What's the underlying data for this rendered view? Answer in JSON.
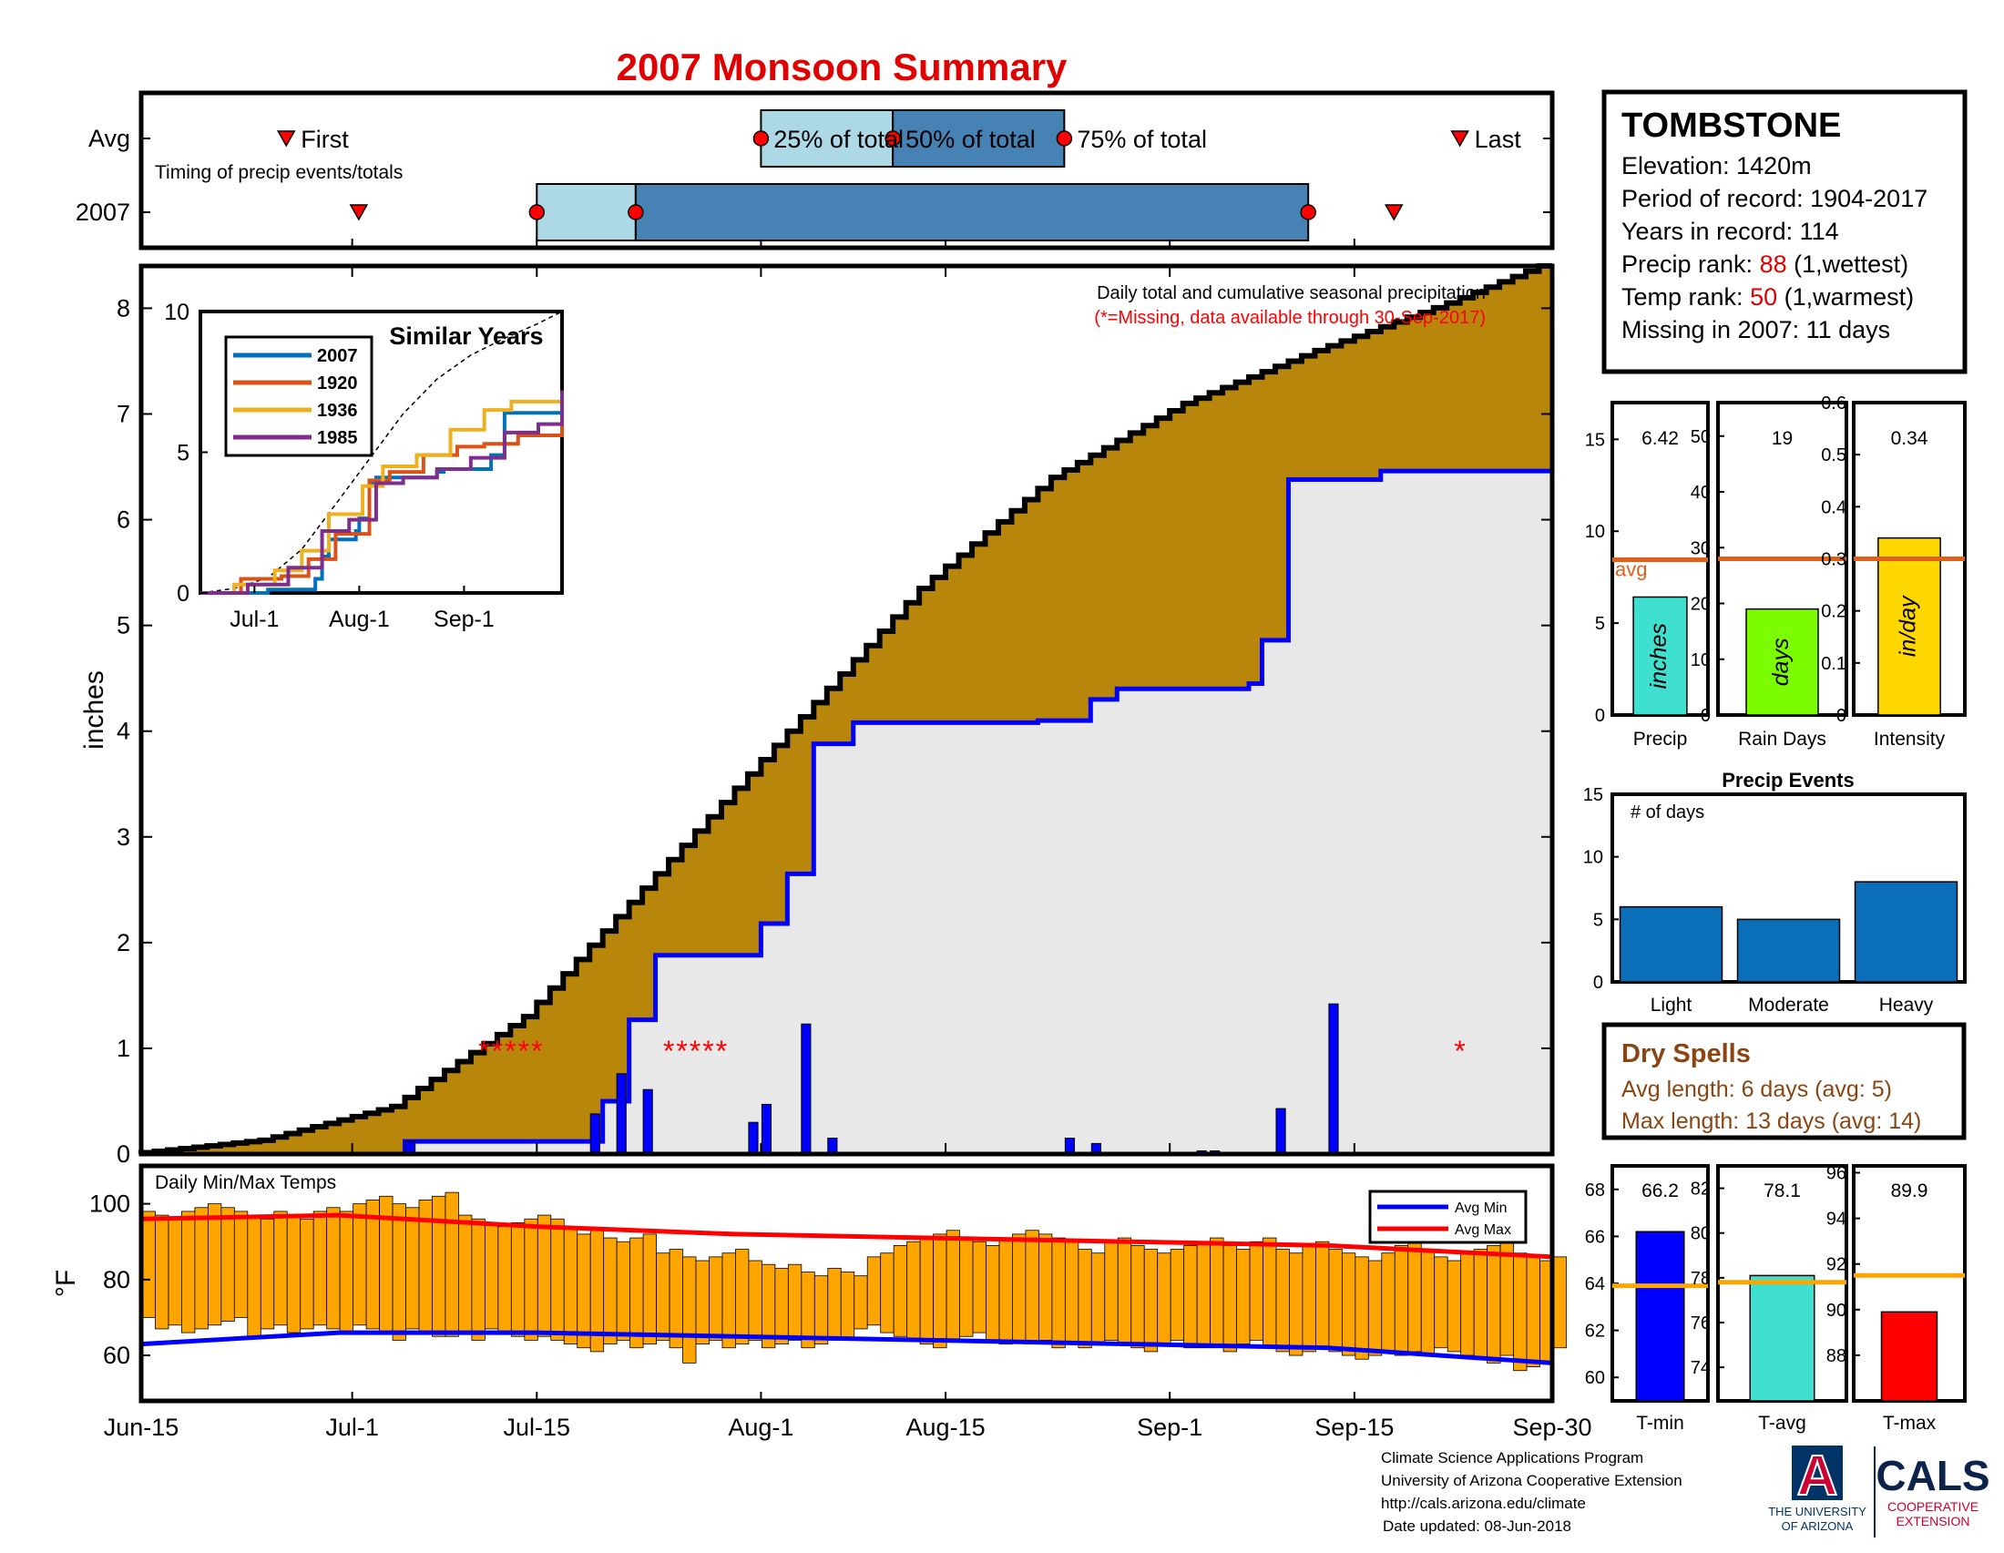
{
  "page": {
    "title": "2007 Monsoon Summary",
    "footer": {
      "lines": [
        "Climate Science Applications Program",
        "University of Arizona Cooperative Extension",
        "http://cals.arizona.edu/climate",
        "Date updated: 08-Jun-2018"
      ],
      "ua_logo_letter": "A",
      "ua_logo_lines": [
        "THE UNIVERSITY",
        "OF ARIZONA"
      ],
      "cals_logo": "CALS",
      "cals_sub": [
        "COOPERATIVE",
        "EXTENSION"
      ]
    }
  },
  "colors": {
    "title": "#e00000",
    "cumulative_avg_fill": "#b8860b",
    "cumulative_2007_fill": "#e8e8e8",
    "line_2007": "#0000ff",
    "missing": "#ff0000",
    "temp_bar": "#ffa500",
    "avg_max": "#ff0000",
    "avg_min": "#0000ff",
    "timing_light": "#add8e6",
    "timing_dark": "#4682b4",
    "avg_line": "#e0601a",
    "drought_text": "#8b4513"
  },
  "station": {
    "name": "TOMBSTONE",
    "lines": [
      {
        "label": "Elevation: ",
        "value": "1420m",
        "suffix": "",
        "highlight": false
      },
      {
        "label": "Period of record: ",
        "value": "1904-2017",
        "suffix": "",
        "highlight": false
      },
      {
        "label": "Years in record: ",
        "value": "114",
        "suffix": "",
        "highlight": false
      },
      {
        "label": "Precip rank: ",
        "value": "88",
        "suffix": " (1,wettest)",
        "highlight": true
      },
      {
        "label": "Temp rank: ",
        "value": "50",
        "suffix": " (1,warmest)",
        "highlight": true
      },
      {
        "label": "Missing in 2007: ",
        "value": "11 days",
        "suffix": "",
        "highlight": false
      }
    ]
  },
  "timing": {
    "rows": [
      "Avg",
      "2007"
    ],
    "caption": "Timing of precip events/totals",
    "avg": {
      "first": 11,
      "q25": 47,
      "q50": 57,
      "q75": 70,
      "last": 100
    },
    "year": {
      "first": 16.5,
      "q25": 30,
      "q50": 37.5,
      "q75": 88.5,
      "last": 95
    },
    "labels": {
      "first": "First",
      "q25": "25% of total",
      "q50": "50% of total",
      "q75": "75% of total",
      "last": "Last"
    }
  },
  "chart_data": [
    {
      "type": "area",
      "name": "main",
      "annotation": "Daily total and cumulative seasonal precipitation",
      "missing_note": "(*=Missing, data available through 30-Sep-2017)",
      "ylabel": "inches",
      "ylim": [
        0,
        8.4
      ],
      "yticks": [
        0,
        1,
        2,
        3,
        4,
        5,
        6,
        7,
        8
      ],
      "x_tick_labels": [
        "Jun-15",
        "Jul-1",
        "Jul-15",
        "Aug-1",
        "Aug-15",
        "Sep-1",
        "Sep-15",
        "Sep-30"
      ],
      "x_tick_days": [
        0,
        16,
        30,
        47,
        61,
        78,
        92,
        107
      ],
      "avg_cumulative": {
        "days": [
          0,
          10,
          20,
          30,
          40,
          50,
          60,
          70,
          80,
          90,
          100,
          107
        ],
        "values": [
          0,
          0.13,
          0.45,
          1.3,
          2.65,
          4.0,
          5.35,
          6.4,
          7.1,
          7.6,
          8.05,
          8.4
        ]
      },
      "cumulative_2007": {
        "days": [
          20,
          34,
          35,
          37,
          39,
          46,
          47,
          49,
          51,
          54,
          68,
          72,
          74,
          84,
          85,
          87,
          88,
          94,
          107
        ],
        "values": [
          0.12,
          0.12,
          0.5,
          1.27,
          1.88,
          1.88,
          2.18,
          2.65,
          3.88,
          4.08,
          4.1,
          4.3,
          4.4,
          4.45,
          4.86,
          6.38,
          6.38,
          6.46,
          6.46
        ]
      },
      "daily_2007": {
        "days": [
          20,
          34,
          36,
          38,
          46,
          47,
          50,
          52,
          70,
          72,
          80,
          81,
          86,
          90
        ],
        "values": [
          0.12,
          0.38,
          0.76,
          0.61,
          0.3,
          0.47,
          1.23,
          0.15,
          0.15,
          0.1,
          0.03,
          0.03,
          0.43,
          1.42
        ]
      },
      "missing_days": [
        26,
        27,
        28,
        29,
        30,
        40,
        41,
        42,
        43,
        44,
        100
      ]
    },
    {
      "type": "line",
      "name": "similar_years",
      "title": "Similar Years",
      "ylim": [
        0,
        10
      ],
      "yticks": [
        0,
        5,
        10
      ],
      "x_tick_labels": [
        "Jul-1",
        "Aug-1",
        "Sep-1"
      ],
      "x_tick_days": [
        16,
        47,
        78
      ],
      "series": [
        {
          "name": "2007",
          "color": "#0072bd",
          "days": [
            0,
            20,
            34,
            36,
            38,
            46,
            47,
            50,
            52,
            70,
            72,
            86,
            90,
            107
          ],
          "values": [
            0,
            0.12,
            0.5,
            1.3,
            1.9,
            2.2,
            2.65,
            3.9,
            4.1,
            4.3,
            4.4,
            4.9,
            6.4,
            6.5
          ]
        },
        {
          "name": "1920",
          "color": "#d95319",
          "days": [
            0,
            12,
            24,
            32,
            40,
            50,
            56,
            66,
            76,
            84,
            94,
            107
          ],
          "values": [
            0,
            0.5,
            0.6,
            1.2,
            2.1,
            4.0,
            4.3,
            4.9,
            5.2,
            5.3,
            5.6,
            6.3
          ]
        },
        {
          "name": "1936",
          "color": "#edb120",
          "days": [
            0,
            10,
            22,
            30,
            38,
            48,
            54,
            64,
            74,
            84,
            92,
            107
          ],
          "values": [
            0,
            0.3,
            0.8,
            1.5,
            2.8,
            3.8,
            4.5,
            4.9,
            5.8,
            6.5,
            6.8,
            7.0
          ]
        },
        {
          "name": "1985",
          "color": "#7e2f8e",
          "days": [
            0,
            14,
            26,
            36,
            44,
            52,
            60,
            70,
            80,
            90,
            100,
            107
          ],
          "values": [
            0,
            0.3,
            0.9,
            2.2,
            2.6,
            3.9,
            4.1,
            4.4,
            4.8,
            5.7,
            6.0,
            7.2
          ]
        }
      ],
      "avg_curve": {
        "days": [
          0,
          10,
          20,
          30,
          40,
          50,
          60,
          70,
          80,
          90,
          100,
          107
        ],
        "values": [
          0,
          0.16,
          0.54,
          1.55,
          3.15,
          4.76,
          6.37,
          7.6,
          8.45,
          9.05,
          9.58,
          10.0
        ]
      }
    },
    {
      "type": "bar",
      "name": "precip",
      "categories": [
        "Precip"
      ],
      "values": [
        6.42
      ],
      "value_label": "6.42",
      "bar_text": "inches",
      "avg": 8.45,
      "avg_label": "avg",
      "ylim": [
        0,
        17
      ],
      "yticks": [
        0,
        5,
        10,
        15
      ],
      "color": "#40e0d0"
    },
    {
      "type": "bar",
      "name": "rain_days",
      "categories": [
        "Rain Days"
      ],
      "values": [
        19
      ],
      "value_label": "19",
      "bar_text": "days",
      "avg": 28,
      "ylim": [
        0,
        56
      ],
      "yticks": [
        0,
        10,
        20,
        30,
        40,
        50
      ],
      "color": "#7cfc00"
    },
    {
      "type": "bar",
      "name": "intensity",
      "categories": [
        "Intensity"
      ],
      "values": [
        0.34
      ],
      "value_label": "0.34",
      "bar_text": "in/day",
      "avg": 0.3,
      "ylim": [
        0,
        0.6
      ],
      "yticks": [
        0,
        0.1,
        0.2,
        0.3,
        0.4,
        0.5,
        0.6
      ],
      "color": "#ffd700"
    },
    {
      "type": "bar",
      "name": "precip_events",
      "title": "Precip Events",
      "annotation": "# of days",
      "categories": [
        "Light",
        "Moderate",
        "Heavy"
      ],
      "values": [
        6,
        5,
        8
      ],
      "ylim": [
        0,
        15
      ],
      "yticks": [
        0,
        5,
        10,
        15
      ],
      "color": "#0b6eb8"
    },
    {
      "type": "bar",
      "name": "temps",
      "title": "Daily Min/Max Temps",
      "ylabel": "°F",
      "ylim": [
        48,
        110
      ],
      "yticks": [
        60,
        80,
        100
      ],
      "legend": [
        "Avg Min",
        "Avg Max"
      ],
      "x_tick_labels": [
        "Jun-15",
        "Jul-1",
        "Jul-15",
        "Aug-1",
        "Aug-15",
        "Sep-1",
        "Sep-15",
        "Sep-30"
      ],
      "x_tick_days": [
        0,
        16,
        30,
        47,
        61,
        78,
        92,
        107
      ],
      "avg_max": {
        "days": [
          0,
          15,
          30,
          45,
          60,
          75,
          90,
          107
        ],
        "values": [
          96,
          97,
          94,
          92,
          91,
          90,
          89,
          86
        ]
      },
      "avg_min": {
        "days": [
          0,
          15,
          30,
          45,
          60,
          75,
          90,
          107
        ],
        "values": [
          63,
          66,
          66,
          65,
          64,
          63,
          62,
          58
        ]
      },
      "daily_max": [
        98,
        97,
        96,
        98,
        99,
        100,
        99,
        98,
        97,
        96,
        98,
        97,
        96,
        98,
        99,
        98,
        100,
        101,
        102,
        100,
        99,
        101,
        102,
        103,
        97,
        96,
        95,
        94,
        95,
        96,
        97,
        96,
        94,
        92,
        93,
        91,
        90,
        91,
        92,
        87,
        88,
        86,
        85,
        86,
        87,
        88,
        85,
        84,
        83,
        84,
        82,
        81,
        83,
        82,
        81,
        86,
        87,
        89,
        90,
        91,
        92,
        93,
        91,
        90,
        89,
        91,
        92,
        93,
        92,
        91,
        90,
        88,
        87,
        90,
        91,
        89,
        88,
        87,
        88,
        89,
        90,
        91,
        89,
        88,
        90,
        91,
        88,
        87,
        89,
        90,
        88,
        87,
        86,
        85,
        87,
        89,
        90,
        88,
        86,
        85,
        87,
        88,
        89,
        90,
        87,
        86,
        85,
        86
      ],
      "daily_min": [
        70,
        67,
        68,
        66,
        67,
        68,
        69,
        70,
        65,
        67,
        68,
        66,
        67,
        68,
        67,
        66,
        68,
        67,
        66,
        64,
        67,
        66,
        65,
        65,
        66,
        64,
        67,
        66,
        65,
        64,
        65,
        64,
        63,
        62,
        61,
        63,
        64,
        62,
        63,
        64,
        62,
        58,
        63,
        64,
        62,
        63,
        64,
        62,
        63,
        64,
        62,
        63,
        64,
        64,
        67,
        68,
        66,
        65,
        64,
        63,
        62,
        64,
        65,
        66,
        64,
        63,
        64,
        63,
        64,
        62,
        63,
        62,
        63,
        64,
        63,
        62,
        61,
        63,
        64,
        62,
        62,
        62,
        61,
        63,
        64,
        62,
        61,
        60,
        61,
        62,
        61,
        60,
        59,
        60,
        61,
        60,
        61,
        60,
        62,
        61,
        60,
        59,
        58,
        60,
        56,
        57,
        58,
        62
      ],
      "summary_bars": [
        {
          "name": "T-min",
          "value": 66.2,
          "value_label": "66.2",
          "avg": 63.9,
          "ylim": [
            59,
            69
          ],
          "yticks": [
            60,
            62,
            64,
            66,
            68
          ],
          "color": "#0000ff"
        },
        {
          "name": "T-avg",
          "value": 78.1,
          "value_label": "78.1",
          "avg": 77.8,
          "ylim": [
            72.5,
            83
          ],
          "yticks": [
            74,
            76,
            78,
            80,
            82
          ],
          "color": "#40e0d0"
        },
        {
          "name": "T-max",
          "value": 89.9,
          "value_label": "89.9",
          "avg": 91.5,
          "ylim": [
            86,
            96.3
          ],
          "yticks": [
            88,
            90,
            92,
            94,
            96
          ],
          "color": "#ff0000"
        }
      ]
    }
  ],
  "dry_spells": {
    "title": "Dry Spells",
    "lines": [
      "Avg length: 6 days (avg: 5)",
      "Max length: 13 days (avg: 14)"
    ]
  }
}
